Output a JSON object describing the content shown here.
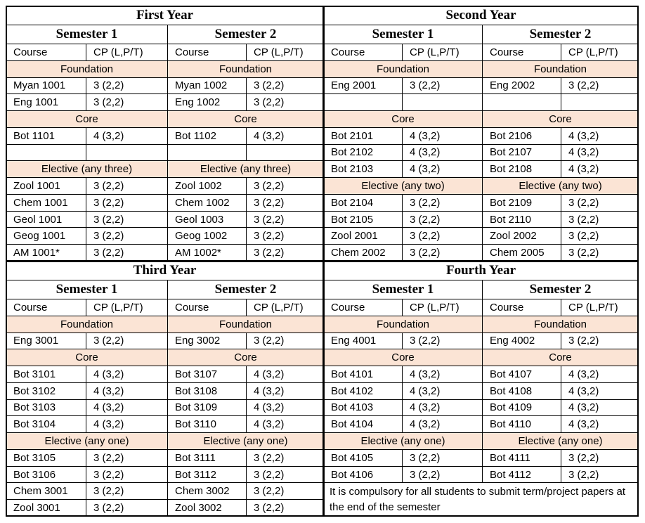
{
  "years": [
    {
      "title": "First Year",
      "semesters": [
        {
          "title": "Semester 1",
          "rows": [
            [
              "Course",
              "CP (L,P/T)"
            ],
            {
              "section": "Foundation"
            },
            [
              "Myan 1001",
              "3 (2,2)"
            ],
            [
              "Eng 1001",
              "3 (2,2)"
            ],
            {
              "section": "Core"
            },
            [
              "Bot 1101",
              "4 (3,2)"
            ],
            null,
            {
              "section": "Elective (any three)"
            },
            [
              "Zool 1001",
              "3 (2,2)"
            ],
            [
              "Chem 1001",
              "3 (2,2)"
            ],
            [
              "Geol 1001",
              "3 (2,2)"
            ],
            [
              "Geog 1001",
              "3 (2,2)"
            ],
            [
              "AM 1001*",
              "3 (2,2)"
            ]
          ]
        },
        {
          "title": "Semester 2",
          "rows": [
            [
              "Course",
              "CP (L,P/T)"
            ],
            {
              "section": "Foundation"
            },
            [
              "Myan 1002",
              "3 (2,2)"
            ],
            [
              "Eng 1002",
              "3 (2,2)"
            ],
            {
              "section": "Core"
            },
            [
              "Bot 1102",
              "4 (3,2)"
            ],
            null,
            {
              "section": "Elective (any three)"
            },
            [
              "Zool 1002",
              "3 (2,2)"
            ],
            [
              "Chem 1002",
              "3 (2,2)"
            ],
            [
              "Geol 1003",
              "3 (2,2)"
            ],
            [
              "Geog 1002",
              "3 (2,2)"
            ],
            [
              "AM 1002*",
              "3 (2,2)"
            ]
          ]
        }
      ]
    },
    {
      "title": "Second Year",
      "semesters": [
        {
          "title": "Semester 1",
          "rows": [
            [
              "Course",
              "CP (L,P/T)"
            ],
            {
              "section": "Foundation"
            },
            [
              "Eng 2001",
              "3 (2,2)"
            ],
            null,
            {
              "section": "Core"
            },
            [
              "Bot 2101",
              "4 (3,2)"
            ],
            [
              "Bot 2102",
              "4 (3,2)"
            ],
            [
              "Bot 2103",
              "4 (3,2)"
            ],
            {
              "section": "Elective (any two)"
            },
            [
              "Bot 2104",
              "3 (2,2)"
            ],
            [
              "Bot 2105",
              "3 (2,2)"
            ],
            [
              "Zool 2001",
              "3 (2,2)"
            ],
            [
              "Chem 2002",
              "3 (2,2)"
            ]
          ]
        },
        {
          "title": "Semester 2",
          "rows": [
            [
              "Course",
              "CP (L,P/T)"
            ],
            {
              "section": "Foundation"
            },
            [
              "Eng 2002",
              "3 (2,2)"
            ],
            null,
            {
              "section": "Core"
            },
            [
              "Bot 2106",
              "4 (3,2)"
            ],
            [
              "Bot 2107",
              "4 (3,2)"
            ],
            [
              "Bot 2108",
              "4 (3,2)"
            ],
            {
              "section": "Elective (any two)"
            },
            [
              "Bot 2109",
              "3 (2,2)"
            ],
            [
              "Bot 2110",
              "3 (2,2)"
            ],
            [
              "Zool 2002",
              "3 (2,2)"
            ],
            [
              "Chem 2005",
              "3 (2,2)"
            ]
          ]
        }
      ]
    },
    {
      "title": "Third Year",
      "semesters": [
        {
          "title": "Semester 1",
          "rows": [
            [
              "Course",
              "CP (L,P/T)"
            ],
            {
              "section": "Foundation"
            },
            [
              "Eng 3001",
              "3 (2,2)"
            ],
            {
              "section": "Core"
            },
            [
              "Bot 3101",
              "4 (3,2)"
            ],
            [
              "Bot 3102",
              "4 (3,2)"
            ],
            [
              "Bot 3103",
              "4 (3,2)"
            ],
            [
              "Bot 3104",
              "4 (3,2)"
            ],
            {
              "section": "Elective (any one)"
            },
            [
              "Bot 3105",
              "3 (2,2)"
            ],
            [
              "Bot 3106",
              "3 (2,2)"
            ],
            [
              "Chem 3001",
              "3 (2,2)"
            ],
            [
              "Zool 3001",
              "3 (2,2)"
            ]
          ]
        },
        {
          "title": "Semester 2",
          "rows": [
            [
              "Course",
              "CP (L,P/T)"
            ],
            {
              "section": "Foundation"
            },
            [
              "Eng 3002",
              "3 (2,2)"
            ],
            {
              "section": "Core"
            },
            [
              "Bot 3107",
              "4 (3,2)"
            ],
            [
              "Bot 3108",
              "4 (3,2)"
            ],
            [
              "Bot 3109",
              "4 (3,2)"
            ],
            [
              "Bot 3110",
              "4 (3,2)"
            ],
            {
              "section": "Elective (any one)"
            },
            [
              "Bot 3111",
              "3 (2,2)"
            ],
            [
              "Bot 3112",
              "3 (2,2)"
            ],
            [
              "Chem 3002",
              "3 (2,2)"
            ],
            [
              "Zool 3002",
              "3 (2,2)"
            ]
          ]
        }
      ]
    },
    {
      "title": "Fourth Year",
      "semesters": [
        {
          "title": "Semester 1",
          "rows": [
            [
              "Course",
              "CP (L,P/T)"
            ],
            {
              "section": "Foundation"
            },
            [
              "Eng 4001",
              "3 (2,2)"
            ],
            {
              "section": "Core"
            },
            [
              "Bot 4101",
              "4 (3,2)"
            ],
            [
              "Bot 4102",
              "4 (3,2)"
            ],
            [
              "Bot 4103",
              "4 (3,2)"
            ],
            [
              "Bot 4104",
              "4 (3,2)"
            ],
            {
              "section": "Elective (any one)"
            },
            [
              "Bot 4105",
              "3 (2,2)"
            ],
            [
              "Bot 4106",
              "3 (2,2)"
            ]
          ]
        },
        {
          "title": "Semester 2",
          "rows": [
            [
              "Course",
              "CP (L,P/T)"
            ],
            {
              "section": "Foundation"
            },
            [
              "Eng 4002",
              "3 (2,2)"
            ],
            {
              "section": "Core"
            },
            [
              "Bot 4107",
              "4 (3,2)"
            ],
            [
              "Bot 4108",
              "4 (3,2)"
            ],
            [
              "Bot 4109",
              "4 (3,2)"
            ],
            [
              "Bot 4110",
              "4 (3,2)"
            ],
            {
              "section": "Elective (any one)"
            },
            [
              "Bot 4111",
              "3 (2,2)"
            ],
            [
              "Bot 4112",
              "3 (2,2)"
            ]
          ]
        }
      ],
      "note": "It is compulsory for all students to submit term/project papers at the end of the semester"
    }
  ]
}
